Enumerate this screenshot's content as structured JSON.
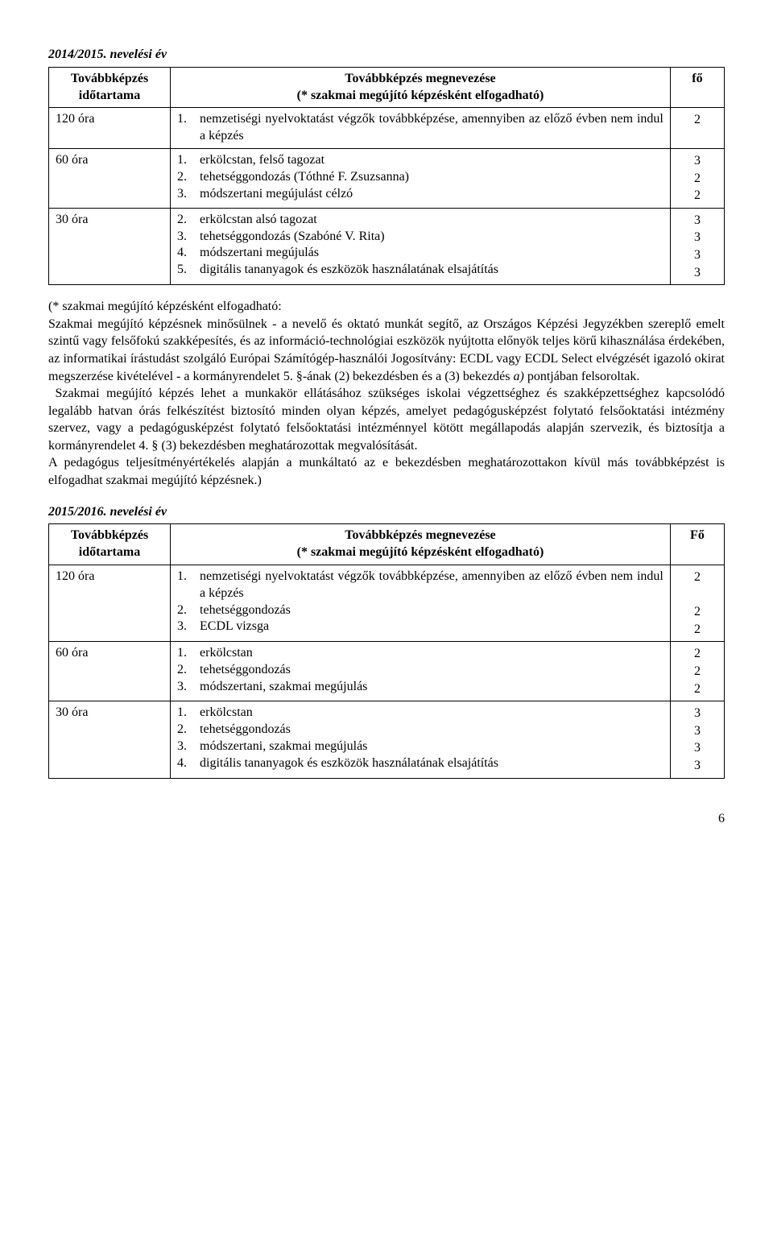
{
  "year1": {
    "heading": "2014/2015. nevelési év",
    "table": {
      "header": {
        "c1": "Továbbképzés időtartama",
        "c2": "Továbbképzés megnevezése\n(* szakmai megújító képzésként elfogadható)",
        "c3": "fő"
      },
      "rows": [
        {
          "duration": "120 óra",
          "items": [
            {
              "n": "1.",
              "text": "nemzetiségi nyelvoktatást végzők továbbképzése, amennyiben az előző évben nem indul a képzés"
            }
          ],
          "counts": [
            "2"
          ]
        },
        {
          "duration": "60 óra",
          "items": [
            {
              "n": "1.",
              "text": "erkölcstan, felső tagozat"
            },
            {
              "n": "2.",
              "text": "tehetséggondozás (Tóthné F. Zsuzsanna)"
            },
            {
              "n": "3.",
              "text": "módszertani megújulást célzó"
            }
          ],
          "counts": [
            "3",
            "2",
            "2"
          ]
        },
        {
          "duration": "30 óra",
          "items": [
            {
              "n": "2.",
              "text": "erkölcstan alsó tagozat"
            },
            {
              "n": "3.",
              "text": "tehetséggondozás (Szabóné V. Rita)"
            },
            {
              "n": "4.",
              "text": "módszertani megújulás"
            },
            {
              "n": "5.",
              "text": "digitális tananyagok és eszközök használatának elsajátítás"
            }
          ],
          "counts": [
            "3",
            "3",
            "3",
            "3"
          ]
        }
      ]
    }
  },
  "explanatory": {
    "p1": "(* szakmai megújító képzésként elfogadható:",
    "p2": "Szakmai megújító képzésnek minősülnek - a nevelő és oktató munkát segítő, az Országos Képzési Jegyzékben szereplő emelt szintű vagy felsőfokú szakképesítés, és az információ-technológiai eszközök nyújtotta előnyök teljes körű kihasználása érdekében, az informatikai írástudást szolgáló Európai Számítógép-használói Jogosítvány: ECDL vagy ECDL Select elvégzését igazoló okirat megszerzése kivételével - a kormányrendelet 5. §-ának (2) bekezdésben és a (3) bekezdés a) pontjában felsoroltak.",
    "p2_italic": "a)",
    "p3": "Szakmai megújító képzés lehet a munkakör ellátásához szükséges iskolai végzettséghez és szakképzettséghez kapcsolódó legalább hatvan órás felkészítést biztosító minden olyan képzés, amelyet pedagógusképzést folytató felsőoktatási intézmény szervez, vagy a pedagógusképzést folytató felsőoktatási intézménnyel kötött megállapodás alapján szervezik, és biztosítja a kormányrendelet 4. § (3) bekezdésben meghatározottak megvalósítását.",
    "p4": "A pedagógus teljesítményértékelés alapján a munkáltató az e bekezdésben meghatározottakon kívül más továbbképzést is elfogadhat szakmai megújító képzésnek.)"
  },
  "year2": {
    "heading": "2015/2016. nevelési év",
    "table": {
      "header": {
        "c1": "Továbbképzés időtartama",
        "c2": "Továbbképzés megnevezése\n(* szakmai megújító képzésként elfogadható)",
        "c3": "Fő"
      },
      "rows": [
        {
          "duration": "120 óra",
          "items": [
            {
              "n": "1.",
              "text": "nemzetiségi nyelvoktatást végzők továbbképzése, amennyiben az előző évben nem indul a képzés"
            },
            {
              "n": "2.",
              "text": "tehetséggondozás"
            },
            {
              "n": "3.",
              "text": "ECDL vizsga"
            }
          ],
          "counts": [
            "2",
            "",
            "2",
            "2"
          ]
        },
        {
          "duration": "60 óra",
          "items": [
            {
              "n": "1.",
              "text": "erkölcstan"
            },
            {
              "n": "2.",
              "text": "tehetséggondozás"
            },
            {
              "n": "3.",
              "text": "módszertani, szakmai megújulás"
            }
          ],
          "counts": [
            "2",
            "2",
            "2"
          ]
        },
        {
          "duration": "30 óra",
          "items": [
            {
              "n": "1.",
              "text": "erkölcstan"
            },
            {
              "n": "2.",
              "text": "tehetséggondozás"
            },
            {
              "n": "3.",
              "text": "módszertani, szakmai megújulás"
            },
            {
              "n": "4.",
              "text": "digitális tananyagok és eszközök használatának elsajátítás"
            }
          ],
          "counts": [
            "3",
            "3",
            "3",
            "3"
          ]
        }
      ]
    }
  },
  "page_number": "6"
}
